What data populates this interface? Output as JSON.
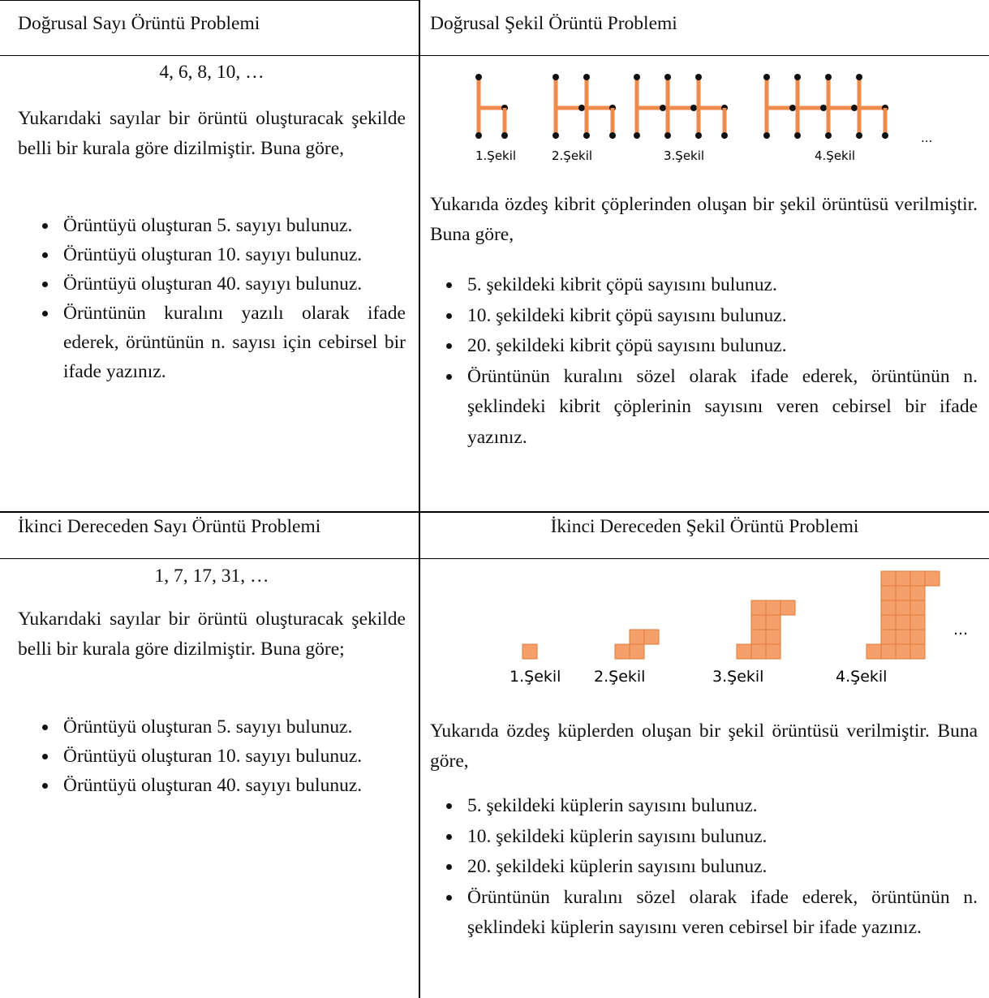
{
  "table": {
    "cells": [
      {
        "header": "Doğrusal Sayı Örüntü Problemi",
        "sequence": "4, 6, 8, 10, …",
        "intro": "Yukarıdaki sayılar bir örüntü oluşturacak şekilde belli bir kurala göre dizilmiştir. Buna göre,",
        "items": [
          "Örüntüyü oluşturan 5. sayıyı bulunuz.",
          "Örüntüyü oluşturan 10. sayıyı bulunuz.",
          "Örüntüyü oluşturan 40. sayıyı bulunuz.",
          "Örüntünün kuralını yazılı olarak ifade ederek, örüntünün n. sayısı için cebirsel bir ifade yazınız."
        ]
      },
      {
        "header": "Doğrusal Şekil Örüntü Problemi",
        "figure_labels": [
          "1.Şekil",
          "2.Şekil",
          "3.Şekil",
          "4.Şekil"
        ],
        "figure_ellipsis": "...",
        "intro": "Yukarıda özdeş kibrit çöplerinden oluşan bir şekil örüntüsü verilmiştir. Buna göre,",
        "items": [
          "5. şekildeki kibrit çöpü sayısını bulunuz.",
          "10. şekildeki kibrit çöpü sayısını bulunuz.",
          "20. şekildeki kibrit çöpü sayısını bulunuz.",
          "Örüntünün kuralını sözel olarak ifade ederek, örüntünün n. şeklindeki kibrit çöplerinin sayısını veren cebirsel bir ifade yazınız."
        ]
      },
      {
        "header": "İkinci Dereceden Sayı Örüntü Problemi",
        "sequence": "1, 7, 17, 31, …",
        "intro": "Yukarıdaki sayılar bir örüntü oluşturacak şekilde belli bir kurala göre dizilmiştir. Buna göre;",
        "items": [
          "Örüntüyü oluşturan 5. sayıyı bulunuz.",
          "Örüntüyü oluşturan 10. sayıyı bulunuz.",
          "Örüntüyü oluşturan 40. sayıyı bulunuz."
        ]
      },
      {
        "header": "İkinci Dereceden Şekil Örüntü Problemi",
        "figure_labels": [
          "1.Şekil",
          "2.Şekil",
          "3.Şekil",
          "4.Şekil"
        ],
        "figure_ellipsis": "...",
        "intro": "Yukarıda özdeş küplerden oluşan bir şekil örüntüsü verilmiştir. Buna göre,",
        "items": [
          "5. şekildeki küplerin sayısını bulunuz.",
          "10. şekildeki küplerin sayısını bulunuz.",
          "20. şekildeki küplerin sayısını bulunuz.",
          "Örüntünün kuralını sözel olarak ifade ederek, örüntünün n. şeklindeki küplerin sayısını veren cebirsel bir ifade yazınız."
        ]
      }
    ]
  }
}
